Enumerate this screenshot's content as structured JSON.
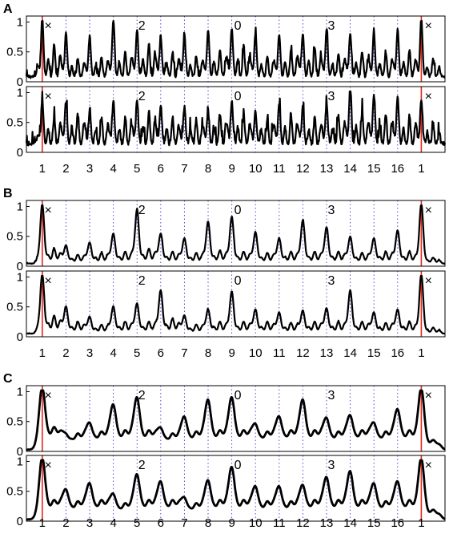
{
  "figure": {
    "colors": {
      "trace": "#000000",
      "event_line": "#e0281e",
      "beat_grid": "#3a3ad8",
      "axis": "#000000",
      "background": "#ffffff"
    },
    "x_tick_labels": [
      "1",
      "2",
      "3",
      "4",
      "5",
      "6",
      "7",
      "8",
      "9",
      "10",
      "11",
      "12",
      "13",
      "14",
      "15",
      "16",
      "1"
    ],
    "y_tick_labels": [
      "0",
      "0.5",
      "1"
    ],
    "event_markers": [
      "×",
      "2",
      "0",
      "3",
      "×"
    ]
  },
  "chart_data": [
    {
      "type": "line",
      "panel": "A",
      "subplot": "top",
      "xlim": [
        0.33,
        18.0
      ],
      "ylim": [
        0,
        1.1
      ],
      "grid": "vertical dotted at beats, red solid at beat 1",
      "beats": [
        1,
        2,
        3,
        4,
        5,
        6,
        7,
        8,
        9,
        10,
        11,
        12,
        13,
        14,
        15,
        16,
        17
      ],
      "peaks": [
        1.0,
        0.72,
        0.68,
        0.94,
        0.78,
        0.68,
        0.7,
        0.78,
        0.82,
        0.72,
        0.7,
        0.72,
        0.8,
        0.72,
        0.72,
        0.78,
        1.0
      ],
      "secondary": [
        0.55,
        0.32,
        0.35,
        0.4,
        0.55,
        0.42,
        0.35,
        0.45,
        0.52,
        0.35,
        0.45,
        0.5,
        0.4,
        0.42,
        0.4,
        0.45,
        0.3
      ],
      "baseline": 0.06,
      "noise": 0.22,
      "peak_width": 0.05
    },
    {
      "type": "line",
      "panel": "A",
      "subplot": "bottom",
      "xlim": [
        0.33,
        18.0
      ],
      "ylim": [
        0,
        1.1
      ],
      "grid": "vertical dotted at beats, red solid at beat 1",
      "beats": [
        1,
        2,
        3,
        4,
        5,
        6,
        7,
        8,
        9,
        10,
        11,
        12,
        13,
        14,
        15,
        16,
        17
      ],
      "peaks": [
        0.75,
        0.7,
        0.55,
        0.72,
        0.75,
        0.68,
        0.62,
        0.55,
        0.72,
        0.55,
        0.7,
        0.62,
        0.68,
        1.0,
        0.82,
        0.78,
        0.75
      ],
      "secondary": [
        0.45,
        0.5,
        0.45,
        0.45,
        0.55,
        0.45,
        0.42,
        0.52,
        0.5,
        0.4,
        0.5,
        0.45,
        0.5,
        0.55,
        0.5,
        0.48,
        0.35
      ],
      "baseline": 0.1,
      "noise": 0.35,
      "peak_width": 0.05
    },
    {
      "type": "line",
      "panel": "B",
      "subplot": "top",
      "xlim": [
        0.33,
        18.0
      ],
      "ylim": [
        0,
        1.1
      ],
      "grid": "vertical dotted at beats, red solid at beat 1",
      "beats": [
        1,
        2,
        3,
        4,
        5,
        6,
        7,
        8,
        9,
        10,
        11,
        12,
        13,
        14,
        15,
        16,
        17
      ],
      "peaks": [
        1.0,
        0.3,
        0.35,
        0.5,
        0.9,
        0.5,
        0.42,
        0.7,
        0.78,
        0.52,
        0.42,
        0.72,
        0.6,
        0.45,
        0.42,
        0.55,
        1.0
      ],
      "secondary": [
        0.25,
        0.15,
        0.18,
        0.2,
        0.25,
        0.2,
        0.18,
        0.22,
        0.2,
        0.18,
        0.2,
        0.2,
        0.2,
        0.18,
        0.2,
        0.2,
        0.1
      ],
      "baseline": 0.04,
      "noise": 0.03,
      "peak_width": 0.08
    },
    {
      "type": "line",
      "panel": "B",
      "subplot": "bottom",
      "xlim": [
        0.33,
        18.0
      ],
      "ylim": [
        0,
        1.1
      ],
      "grid": "vertical dotted at beats, red solid at beat 1",
      "beats": [
        1,
        2,
        3,
        4,
        5,
        6,
        7,
        8,
        9,
        10,
        11,
        12,
        13,
        14,
        15,
        16,
        17
      ],
      "peaks": [
        1.0,
        0.45,
        0.28,
        0.45,
        0.5,
        0.72,
        0.3,
        0.4,
        0.7,
        0.4,
        0.35,
        0.38,
        0.42,
        0.72,
        0.35,
        0.4,
        1.0
      ],
      "secondary": [
        0.3,
        0.2,
        0.15,
        0.2,
        0.2,
        0.25,
        0.15,
        0.2,
        0.2,
        0.2,
        0.18,
        0.2,
        0.2,
        0.2,
        0.18,
        0.2,
        0.1
      ],
      "baseline": 0.05,
      "noise": 0.03,
      "peak_width": 0.08
    },
    {
      "type": "line",
      "panel": "C",
      "subplot": "top",
      "xlim": [
        0.33,
        18.0
      ],
      "ylim": [
        0,
        1.1
      ],
      "grid": "vertical dotted at beats, red solid at beat 1",
      "beats": [
        1,
        2,
        3,
        4,
        5,
        6,
        7,
        8,
        9,
        10,
        11,
        12,
        13,
        14,
        15,
        16,
        17
      ],
      "peaks": [
        1.0,
        0.22,
        0.4,
        0.7,
        0.82,
        0.32,
        0.5,
        0.78,
        0.82,
        0.38,
        0.5,
        0.78,
        0.48,
        0.52,
        0.4,
        0.62,
        1.0
      ],
      "secondary": [
        0.35,
        0.25,
        0.28,
        0.3,
        0.3,
        0.25,
        0.28,
        0.3,
        0.3,
        0.28,
        0.3,
        0.3,
        0.28,
        0.3,
        0.28,
        0.3,
        0.15
      ],
      "baseline": 0.03,
      "noise": 0.0,
      "peak_width": 0.12
    },
    {
      "type": "line",
      "panel": "C",
      "subplot": "bottom",
      "xlim": [
        0.33,
        18.0
      ],
      "ylim": [
        0,
        1.1
      ],
      "grid": "vertical dotted at beats, red solid at beat 1",
      "beats": [
        1,
        2,
        3,
        4,
        5,
        6,
        7,
        8,
        9,
        10,
        11,
        12,
        13,
        14,
        15,
        16,
        17
      ],
      "peaks": [
        1.0,
        0.45,
        0.55,
        0.38,
        0.7,
        0.58,
        0.32,
        0.6,
        0.82,
        0.5,
        0.5,
        0.52,
        0.65,
        0.75,
        0.55,
        0.58,
        1.0
      ],
      "secondary": [
        0.3,
        0.28,
        0.3,
        0.25,
        0.3,
        0.3,
        0.25,
        0.3,
        0.3,
        0.28,
        0.28,
        0.3,
        0.3,
        0.3,
        0.28,
        0.3,
        0.15
      ],
      "baseline": 0.03,
      "noise": 0.0,
      "peak_width": 0.12
    }
  ],
  "panels": [
    {
      "label": "A"
    },
    {
      "label": "B"
    },
    {
      "label": "C"
    }
  ]
}
